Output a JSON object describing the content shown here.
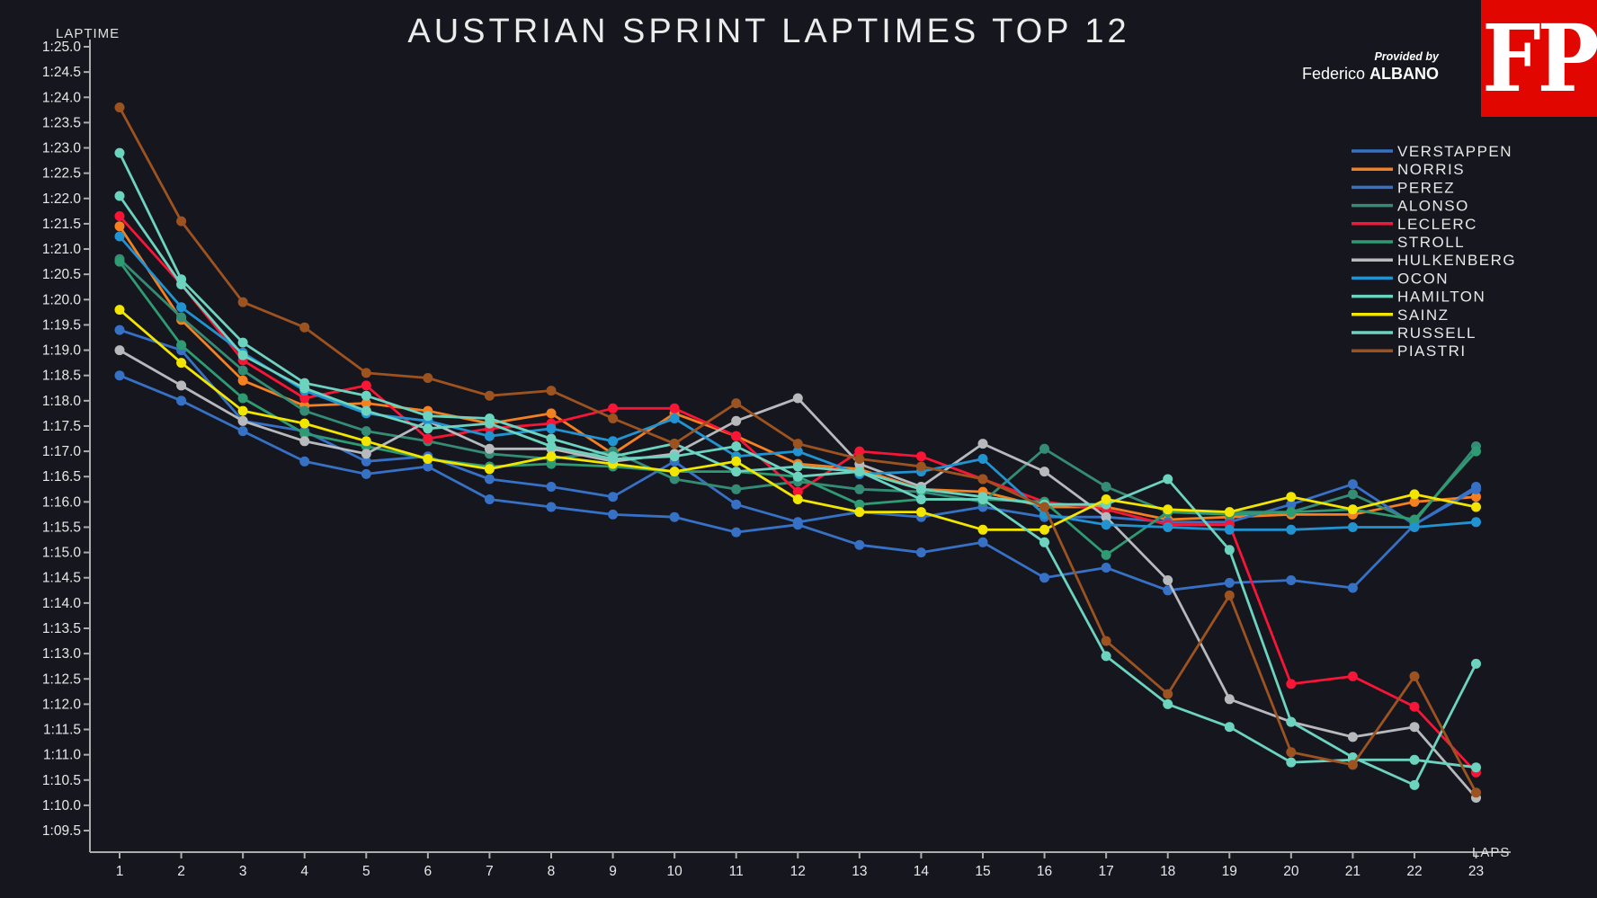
{
  "header": {
    "title": "AUSTRIAN SPRINT LAPTIMES TOP 12",
    "provided_by": "Provided by",
    "author_regular": "Federico ",
    "author_bold": "ALBANO",
    "logo_text": "FP",
    "logo_color": "#E10600"
  },
  "chart_data": {
    "type": "line",
    "title": "AUSTRIAN SPRINT LAPTIMES TOP 12",
    "xlabel": "LAPS",
    "ylabel": "LAPTIME",
    "x": [
      1,
      2,
      3,
      4,
      5,
      6,
      7,
      8,
      9,
      10,
      11,
      12,
      13,
      14,
      15,
      16,
      17,
      18,
      19,
      20,
      21,
      22,
      23
    ],
    "ylim_seconds": [
      69.5,
      85.0
    ],
    "ytick_step": 0.5,
    "ytick_format": "1:MM.s",
    "grid": false,
    "legend_position": "right",
    "series": [
      {
        "name": "VERSTAPPEN",
        "color": "#3671C6",
        "values": [
          78.5,
          78.0,
          77.4,
          76.8,
          76.55,
          76.7,
          76.05,
          75.9,
          75.75,
          75.7,
          75.4,
          75.55,
          75.15,
          75.0,
          75.2,
          74.5,
          74.7,
          74.25,
          74.4,
          74.45,
          74.3,
          75.55,
          76.3
        ]
      },
      {
        "name": "NORRIS",
        "color": "#F58020",
        "values": [
          81.45,
          79.6,
          78.4,
          77.9,
          77.95,
          77.8,
          77.55,
          77.75,
          76.95,
          77.75,
          77.3,
          76.75,
          76.65,
          76.25,
          76.2,
          75.9,
          75.9,
          75.65,
          75.7,
          75.75,
          75.75,
          76.0,
          76.1
        ]
      },
      {
        "name": "PEREZ",
        "color": "#3671C6",
        "values": [
          79.4,
          79.0,
          77.6,
          77.4,
          76.8,
          76.9,
          76.45,
          76.3,
          76.1,
          76.8,
          75.95,
          75.6,
          75.8,
          75.7,
          75.9,
          75.7,
          75.7,
          75.6,
          75.6,
          75.95,
          76.35,
          75.55,
          76.25
        ]
      },
      {
        "name": "ALONSO",
        "color": "#358C75",
        "values": [
          80.8,
          79.65,
          78.6,
          77.8,
          77.4,
          77.2,
          76.95,
          76.85,
          77.0,
          76.45,
          76.25,
          76.4,
          76.25,
          76.2,
          76.0,
          77.05,
          76.3,
          75.8,
          75.8,
          75.8,
          76.15,
          75.6,
          77.1
        ]
      },
      {
        "name": "LECLERC",
        "color": "#F91536",
        "values": [
          81.65,
          80.3,
          78.8,
          78.05,
          78.3,
          77.25,
          77.45,
          77.55,
          77.85,
          77.85,
          77.3,
          76.2,
          77.0,
          76.9,
          76.45,
          76.0,
          75.85,
          75.55,
          75.55,
          72.4,
          72.55,
          71.95,
          70.65
        ]
      },
      {
        "name": "STROLL",
        "color": "#2E9B72",
        "values": [
          80.75,
          79.1,
          78.05,
          77.35,
          77.1,
          76.85,
          76.7,
          76.75,
          76.7,
          76.6,
          76.6,
          76.5,
          75.95,
          76.05,
          76.05,
          76.0,
          74.95,
          75.8,
          75.75,
          75.8,
          75.85,
          75.65,
          77.0
        ]
      },
      {
        "name": "HULKENBERG",
        "color": "#B6BABD",
        "values": [
          79.0,
          78.3,
          77.6,
          77.2,
          76.95,
          77.6,
          77.05,
          77.05,
          76.8,
          76.95,
          77.6,
          78.05,
          76.75,
          76.3,
          77.15,
          76.6,
          75.7,
          74.45,
          72.1,
          71.65,
          71.35,
          71.55,
          70.15
        ]
      },
      {
        "name": "OCON",
        "color": "#2293D1",
        "values": [
          81.25,
          79.85,
          78.95,
          78.2,
          77.75,
          77.6,
          77.3,
          77.45,
          77.2,
          77.65,
          76.9,
          77.0,
          76.55,
          76.6,
          76.85,
          75.75,
          75.55,
          75.5,
          75.45,
          75.45,
          75.5,
          75.5,
          75.6
        ]
      },
      {
        "name": "HAMILTON",
        "color": "#6CD3BF",
        "values": [
          82.9,
          80.4,
          79.15,
          78.35,
          78.1,
          77.7,
          77.65,
          77.25,
          76.9,
          77.15,
          76.6,
          76.7,
          76.6,
          76.25,
          76.1,
          75.95,
          75.95,
          76.45,
          75.05,
          71.65,
          70.95,
          70.4,
          72.8
        ]
      },
      {
        "name": "SAINZ",
        "color": "#F2E500",
        "values": [
          79.8,
          78.75,
          77.8,
          77.55,
          77.2,
          76.85,
          76.65,
          76.9,
          76.75,
          76.6,
          76.8,
          76.05,
          75.8,
          75.8,
          75.45,
          75.45,
          76.05,
          75.85,
          75.8,
          76.1,
          75.85,
          76.15,
          75.9
        ]
      },
      {
        "name": "RUSSELL",
        "color": "#6CD3BF",
        "values": [
          82.05,
          80.3,
          78.9,
          78.25,
          77.8,
          77.45,
          77.55,
          77.1,
          76.85,
          76.9,
          77.1,
          76.5,
          76.6,
          76.05,
          76.05,
          75.2,
          72.95,
          72.0,
          71.55,
          70.85,
          70.9,
          70.9,
          70.75
        ]
      },
      {
        "name": "PIASTRI",
        "color": "#9D5320",
        "values": [
          83.8,
          81.55,
          79.95,
          79.45,
          78.55,
          78.45,
          78.1,
          78.2,
          77.65,
          77.15,
          77.95,
          77.15,
          76.85,
          76.7,
          76.45,
          75.9,
          73.25,
          72.2,
          74.15,
          71.05,
          70.8,
          72.55,
          70.25
        ]
      }
    ]
  },
  "axes": {
    "y_label": "LAPTIME",
    "x_label": "LAPS"
  }
}
